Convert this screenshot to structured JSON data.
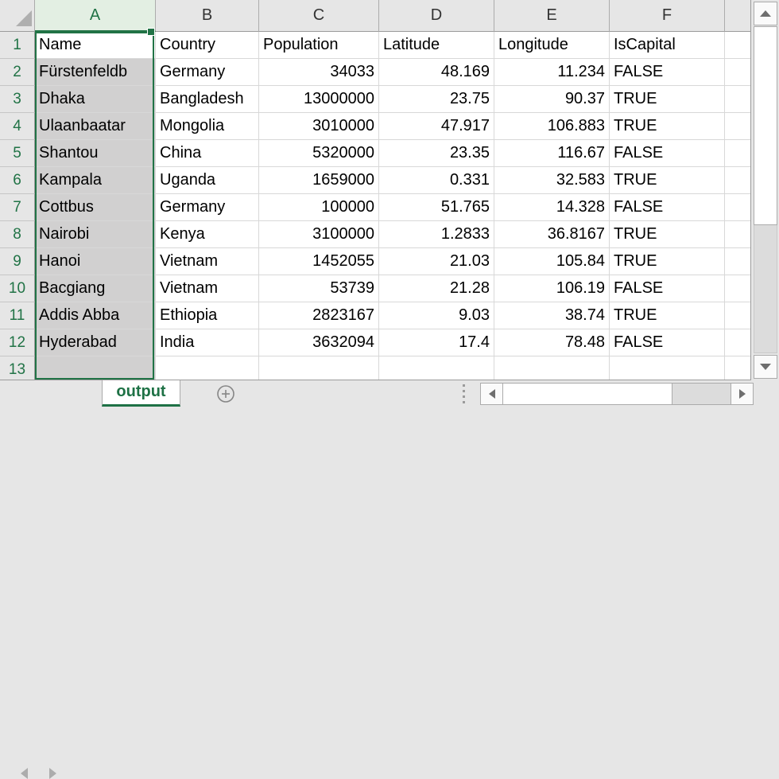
{
  "grid": {
    "column_letters": [
      "A",
      "B",
      "C",
      "D",
      "E",
      "F",
      ""
    ],
    "selected_column": "A",
    "active_cell": "A1",
    "rows": [
      {
        "num": "1",
        "cells": [
          "Name",
          "Country",
          "Population",
          "Latitude",
          "Longitude",
          "IsCapital",
          ""
        ]
      },
      {
        "num": "2",
        "cells": [
          "Fürstenfeldb",
          "Germany",
          "34033",
          "48.169",
          "11.234",
          "FALSE",
          ""
        ]
      },
      {
        "num": "3",
        "cells": [
          "Dhaka",
          "Bangladesh",
          "13000000",
          "23.75",
          "90.37",
          "TRUE",
          ""
        ]
      },
      {
        "num": "4",
        "cells": [
          "Ulaanbaatar",
          "Mongolia",
          "3010000",
          "47.917",
          "106.883",
          "TRUE",
          ""
        ]
      },
      {
        "num": "5",
        "cells": [
          "Shantou",
          "China",
          "5320000",
          "23.35",
          "116.67",
          "FALSE",
          ""
        ]
      },
      {
        "num": "6",
        "cells": [
          "Kampala",
          "Uganda",
          "1659000",
          "0.331",
          "32.583",
          "TRUE",
          ""
        ]
      },
      {
        "num": "7",
        "cells": [
          "Cottbus",
          "Germany",
          "100000",
          "51.765",
          "14.328",
          "FALSE",
          ""
        ]
      },
      {
        "num": "8",
        "cells": [
          "Nairobi",
          "Kenya",
          "3100000",
          "1.2833",
          "36.8167",
          "TRUE",
          ""
        ]
      },
      {
        "num": "9",
        "cells": [
          "Hanoi",
          "Vietnam",
          "1452055",
          "21.03",
          "105.84",
          "TRUE",
          ""
        ]
      },
      {
        "num": "10",
        "cells": [
          "Bacgiang",
          "Vietnam",
          "53739",
          "21.28",
          "106.19",
          "FALSE",
          ""
        ]
      },
      {
        "num": "11",
        "cells": [
          "Addis Abba",
          "Ethiopia",
          "2823167",
          "9.03",
          "38.74",
          "TRUE",
          ""
        ]
      },
      {
        "num": "12",
        "cells": [
          "Hyderabad",
          "India",
          "3632094",
          "17.4",
          "78.48",
          "FALSE",
          ""
        ]
      },
      {
        "num": "13",
        "cells": [
          "",
          "",
          "",
          "",
          "",
          "",
          ""
        ]
      }
    ]
  },
  "sheet_bar": {
    "active_tab": "output",
    "nav_prev_icon": "chevron-left",
    "nav_next_icon": "chevron-right",
    "add_sheet_icon": "plus-circle"
  },
  "scrollbars": {
    "vertical_up_icon": "up-arrow",
    "vertical_down_icon": "down-arrow",
    "horizontal_left_icon": "left-arrow",
    "horizontal_right_icon": "right-arrow",
    "drag_handle_icon": "dotted-handle"
  },
  "icons": {
    "select_all": "select-all-triangle"
  },
  "colors": {
    "accent_green": "#217346",
    "selected_header_fill": "#E3EFE3",
    "selection_fill": "#D1D0D0",
    "header_bg": "#E6E6E6",
    "gridline": "#D8D8D8"
  }
}
